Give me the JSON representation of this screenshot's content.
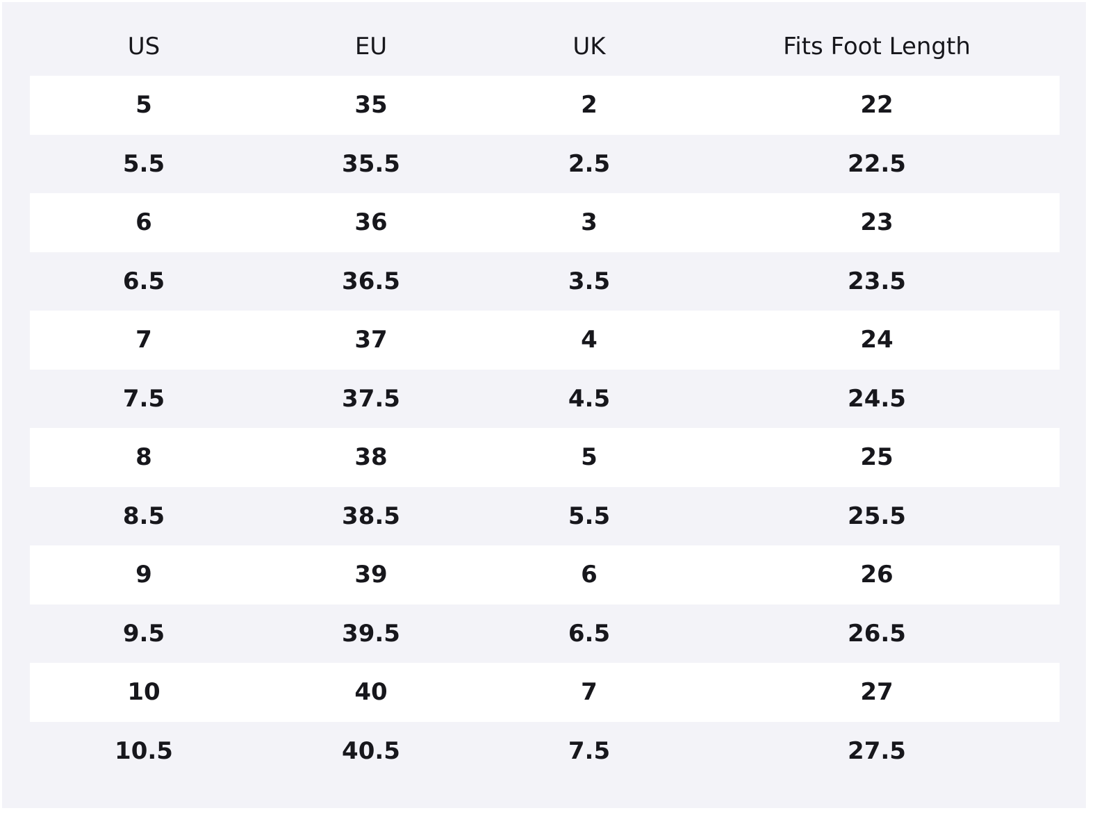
{
  "table": {
    "header": [
      "US",
      "EU",
      "UK",
      "Fits Foot Length"
    ],
    "rows": [
      [
        "5",
        "35",
        "2",
        "22"
      ],
      [
        "5.5",
        "35.5",
        "2.5",
        "22.5"
      ],
      [
        "6",
        "36",
        "3",
        "23"
      ],
      [
        "6.5",
        "36.5",
        "3.5",
        "23.5"
      ],
      [
        "7",
        "37",
        "4",
        "24"
      ],
      [
        "7.5",
        "37.5",
        "4.5",
        "24.5"
      ],
      [
        "8",
        "38",
        "5",
        "25"
      ],
      [
        "8.5",
        "38.5",
        "5.5",
        "25.5"
      ],
      [
        "9",
        "39",
        "6",
        "26"
      ],
      [
        "9.5",
        "39.5",
        "6.5",
        "26.5"
      ],
      [
        "10",
        "40",
        "7",
        "27"
      ],
      [
        "10.5",
        "40.5",
        "7.5",
        "27.5"
      ]
    ]
  }
}
